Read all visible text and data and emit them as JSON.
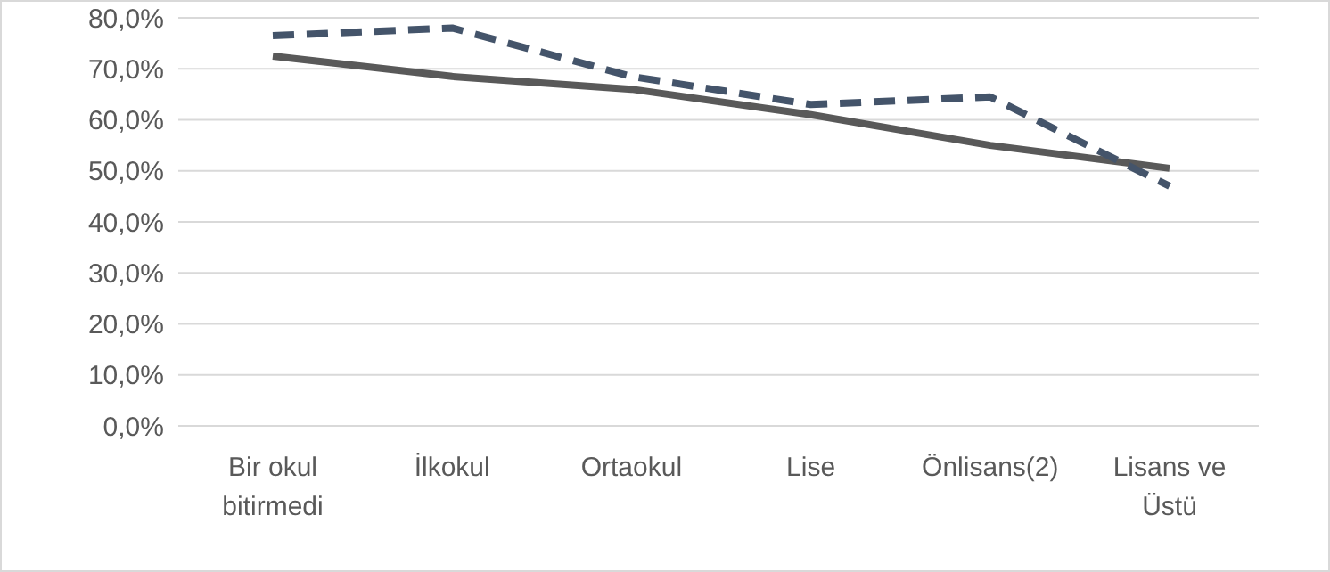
{
  "chart_data": {
    "type": "line",
    "categories": [
      "Bir okul bitirmedi",
      "İlkokul",
      "Ortaokul",
      "Lise",
      "Önlisans(2)",
      "Lisans ve Üstü"
    ],
    "series": [
      {
        "color": "#595959",
        "values": [
          72.5,
          68.5,
          66,
          61,
          55,
          50.5
        ],
        "line_style": "solid"
      },
      {
        "color": "#44546a",
        "values": [
          76.5,
          78,
          68.5,
          63,
          64.5,
          47
        ],
        "line_style": "dashed"
      }
    ],
    "ylim": [
      0,
      80
    ],
    "yticks": [
      {
        "value": 0,
        "label": "0,0%"
      },
      {
        "value": 10,
        "label": "10,0%"
      },
      {
        "value": 20,
        "label": "20,0%"
      },
      {
        "value": 30,
        "label": "30,0%"
      },
      {
        "value": 40,
        "label": "40,0%"
      },
      {
        "value": 50,
        "label": "50,0%"
      },
      {
        "value": 60,
        "label": "60,0%"
      },
      {
        "value": 70,
        "label": "70,0%"
      },
      {
        "value": 80,
        "label": "80,0%"
      }
    ],
    "grid": "y",
    "marker": "none"
  }
}
